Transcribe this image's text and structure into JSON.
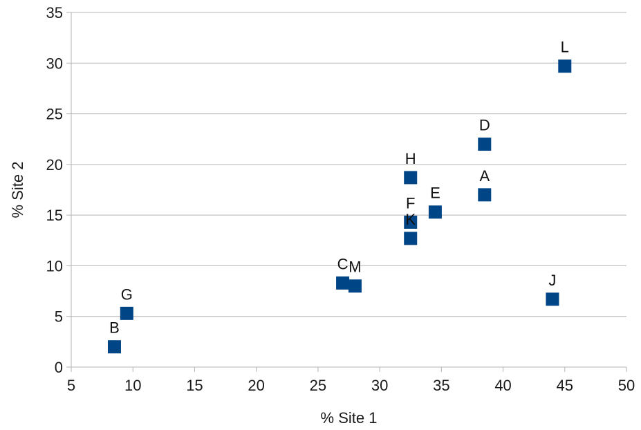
{
  "chart_data": {
    "type": "scatter",
    "xlabel": "% Site 1",
    "ylabel": "% Site 2",
    "xlim": [
      5,
      50
    ],
    "ylim": [
      0,
      35
    ],
    "x_ticks": [
      "5",
      "10",
      "15",
      "20",
      "25",
      "30",
      "35",
      "40",
      "45",
      "50"
    ],
    "y_ticks": [
      "0",
      "5",
      "10",
      "15",
      "20",
      "25",
      "30",
      "35"
    ],
    "grid": "horizontal",
    "marker": "square",
    "color": "#004586",
    "points": [
      {
        "label": "A",
        "x": 38.5,
        "y": 17.0
      },
      {
        "label": "B",
        "x": 8.5,
        "y": 2.0
      },
      {
        "label": "C",
        "x": 27.0,
        "y": 8.3
      },
      {
        "label": "D",
        "x": 38.5,
        "y": 22.0
      },
      {
        "label": "E",
        "x": 34.5,
        "y": 15.3
      },
      {
        "label": "F",
        "x": 32.5,
        "y": 14.3
      },
      {
        "label": "G",
        "x": 9.5,
        "y": 5.3
      },
      {
        "label": "H",
        "x": 32.5,
        "y": 18.7
      },
      {
        "label": "J",
        "x": 44.0,
        "y": 6.7
      },
      {
        "label": "K",
        "x": 32.5,
        "y": 12.7
      },
      {
        "label": "L",
        "x": 45.0,
        "y": 29.7
      },
      {
        "label": "M",
        "x": 28.0,
        "y": 8.0
      }
    ]
  }
}
